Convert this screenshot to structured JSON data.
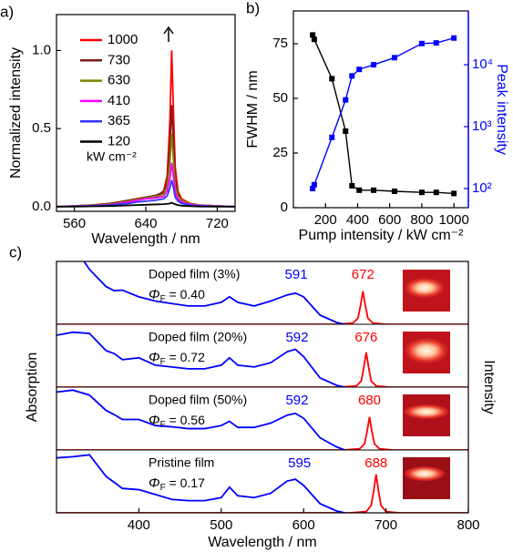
{
  "chart_data": [
    {
      "type": "line",
      "panel_label": "a)",
      "xlabel": "Wavelength / nm",
      "ylabel": "Normalized intensity",
      "xlim": [
        540,
        740
      ],
      "xticks": [
        560,
        640,
        720
      ],
      "ylim": [
        -0.03,
        1.23
      ],
      "yticks": [
        {
          "value": 0,
          "label": "0.0"
        },
        {
          "value": 0.5,
          "label": "0.5"
        },
        {
          "value": 1,
          "label": "1.0"
        }
      ],
      "legend": "upper left",
      "legend_unit": "kW cm⁻²",
      "x": [
        540,
        560,
        580,
        600,
        610,
        620,
        630,
        640,
        650,
        655,
        660,
        664,
        667,
        669,
        671,
        673,
        676,
        680,
        690,
        700,
        720,
        740
      ],
      "series": [
        {
          "name": "1000",
          "color": "#ff0000",
          "values": [
            0,
            0.005,
            0.01,
            0.02,
            0.03,
            0.04,
            0.05,
            0.06,
            0.07,
            0.08,
            0.1,
            0.2,
            0.55,
            1.0,
            0.6,
            0.25,
            0.1,
            0.05,
            0.02,
            0.01,
            0.005,
            0
          ]
        },
        {
          "name": "730",
          "color": "#7b1c1c",
          "values": [
            0,
            0.005,
            0.01,
            0.02,
            0.03,
            0.04,
            0.05,
            0.06,
            0.07,
            0.08,
            0.09,
            0.16,
            0.38,
            0.65,
            0.4,
            0.17,
            0.08,
            0.04,
            0.02,
            0.01,
            0.005,
            0
          ]
        },
        {
          "name": "630",
          "color": "#808000",
          "values": [
            0,
            0.004,
            0.008,
            0.016,
            0.025,
            0.035,
            0.045,
            0.055,
            0.065,
            0.07,
            0.08,
            0.13,
            0.28,
            0.47,
            0.3,
            0.13,
            0.07,
            0.04,
            0.02,
            0.01,
            0.004,
            0
          ]
        },
        {
          "name": "410",
          "color": "#ff00ff",
          "values": [
            0,
            0.003,
            0.006,
            0.012,
            0.02,
            0.03,
            0.04,
            0.05,
            0.055,
            0.06,
            0.065,
            0.1,
            0.18,
            0.28,
            0.19,
            0.09,
            0.05,
            0.03,
            0.015,
            0.008,
            0.003,
            0
          ]
        },
        {
          "name": "365",
          "color": "#3333ff",
          "values": [
            0,
            0.002,
            0.005,
            0.01,
            0.015,
            0.02,
            0.03,
            0.035,
            0.04,
            0.045,
            0.05,
            0.07,
            0.12,
            0.17,
            0.12,
            0.06,
            0.035,
            0.02,
            0.01,
            0.005,
            0.002,
            0
          ]
        },
        {
          "name": "120",
          "color": "#000000",
          "values": [
            0,
            0,
            0.002,
            0.004,
            0.006,
            0.008,
            0.01,
            0.012,
            0.014,
            0.015,
            0.016,
            0.018,
            0.02,
            0.025,
            0.02,
            0.015,
            0.01,
            0.006,
            0.003,
            0.001,
            0,
            0
          ]
        }
      ]
    },
    {
      "type": "line",
      "panel_label": "b)",
      "xlabel": "Pump intensity / kW cm⁻²",
      "ylabel": "FWHM / nm",
      "y2label": "Peak intensity",
      "xlim": [
        0,
        1090
      ],
      "xticks": [
        200,
        400,
        600,
        800,
        1000
      ],
      "ylim": [
        0,
        90
      ],
      "yticks": [
        0,
        25,
        50,
        75
      ],
      "y2lim": [
        49,
        74000
      ],
      "y2scale": "log",
      "y2ticks": [
        {
          "value": 100,
          "label": "10²"
        },
        {
          "value": 1000,
          "label": "10³"
        },
        {
          "value": 10000,
          "label": "10⁴"
        }
      ],
      "x": [
        120,
        130,
        240,
        325,
        365,
        410,
        500,
        630,
        800,
        890,
        1000
      ],
      "series": [
        {
          "name": "FWHM",
          "color": "#000000",
          "values": [
            79,
            77,
            59,
            35,
            10,
            8,
            8,
            7.5,
            7,
            7,
            6.5
          ]
        },
        {
          "name": "Peak intensity",
          "color": "#0000ff",
          "axis": "y2",
          "values": [
            100,
            115,
            670,
            2700,
            6600,
            8400,
            10000,
            13000,
            22000,
            22500,
            27000
          ]
        }
      ]
    },
    {
      "type": "spectra",
      "panel_label": "c)",
      "xlabel": "Wavelength / nm",
      "ylabel": "Absorption",
      "y2label": "Intensity",
      "xlim": [
        300,
        800
      ],
      "xticks": [
        400,
        500,
        600,
        700,
        800
      ],
      "ylim": [
        0,
        1
      ],
      "absorption_x": [
        300,
        320,
        340,
        360,
        370,
        380,
        400,
        420,
        440,
        460,
        480,
        500,
        510,
        520,
        540,
        560,
        580,
        590,
        600,
        620,
        640,
        650
      ],
      "absorption_color": "#0000ff",
      "emission_color": "#ff0000",
      "panels": [
        {
          "label": "Doped film (3%)",
          "phi_symbol": "Φ",
          "phi_subscript": "F",
          "phi_value": " = 0.40",
          "absorption_peak": 591,
          "emission_peak": 672,
          "absorption": [
            1.6,
            1.3,
            0.9,
            0.62,
            0.55,
            0.56,
            0.45,
            0.38,
            0.34,
            0.3,
            0.3,
            0.36,
            0.45,
            0.36,
            0.3,
            0.38,
            0.48,
            0.51,
            0.45,
            0.15,
            0.03,
            0
          ],
          "emission_x": [
            300,
            640,
            660,
            666,
            669,
            672,
            675,
            678,
            684,
            700,
            800
          ],
          "emission": [
            0,
            0,
            0.02,
            0.1,
            0.3,
            0.54,
            0.3,
            0.1,
            0.02,
            0,
            0
          ]
        },
        {
          "label": "Doped film (20%)",
          "phi_symbol": "Φ",
          "phi_subscript": "F",
          "phi_value": " = 0.72",
          "absorption_peak": 592,
          "emission_peak": 676,
          "absorption": [
            0.85,
            0.9,
            0.88,
            0.6,
            0.55,
            0.45,
            0.48,
            0.36,
            0.33,
            0.3,
            0.3,
            0.36,
            0.48,
            0.36,
            0.33,
            0.4,
            0.58,
            0.62,
            0.5,
            0.15,
            0.03,
            0
          ],
          "emission_x": [
            300,
            644,
            664,
            670,
            673,
            676,
            679,
            682,
            688,
            704,
            800
          ],
          "emission": [
            0,
            0,
            0.02,
            0.1,
            0.32,
            0.57,
            0.32,
            0.1,
            0.02,
            0,
            0
          ]
        },
        {
          "label": "Doped film (50%)",
          "phi_symbol": "Φ",
          "phi_subscript": "F",
          "phi_value": " = 0.56",
          "absorption_peak": 592,
          "emission_peak": 680,
          "absorption": [
            0.95,
            0.98,
            0.9,
            0.65,
            0.58,
            0.5,
            0.5,
            0.4,
            0.38,
            0.35,
            0.35,
            0.4,
            0.47,
            0.37,
            0.37,
            0.44,
            0.57,
            0.6,
            0.52,
            0.2,
            0.05,
            0
          ],
          "emission_x": [
            300,
            648,
            668,
            674,
            677,
            680,
            683,
            686,
            692,
            708,
            800
          ],
          "emission": [
            0,
            0,
            0.02,
            0.1,
            0.3,
            0.54,
            0.3,
            0.1,
            0.02,
            0,
            0
          ]
        },
        {
          "label": "Pristine film",
          "phi_symbol": "Φ",
          "phi_subscript": "F",
          "phi_value": " = 0.17",
          "absorption_peak": 595,
          "emission_peak": 688,
          "absorption": [
            0.9,
            0.92,
            0.95,
            0.6,
            0.5,
            0.4,
            0.38,
            0.3,
            0.22,
            0.2,
            0.2,
            0.25,
            0.42,
            0.28,
            0.25,
            0.32,
            0.52,
            0.55,
            0.45,
            0.15,
            0.03,
            0
          ],
          "emission_x": [
            300,
            656,
            676,
            682,
            685,
            688,
            691,
            694,
            700,
            716,
            800
          ],
          "emission": [
            0,
            0,
            0.02,
            0.12,
            0.35,
            0.63,
            0.35,
            0.12,
            0.02,
            0,
            0
          ]
        }
      ]
    }
  ]
}
